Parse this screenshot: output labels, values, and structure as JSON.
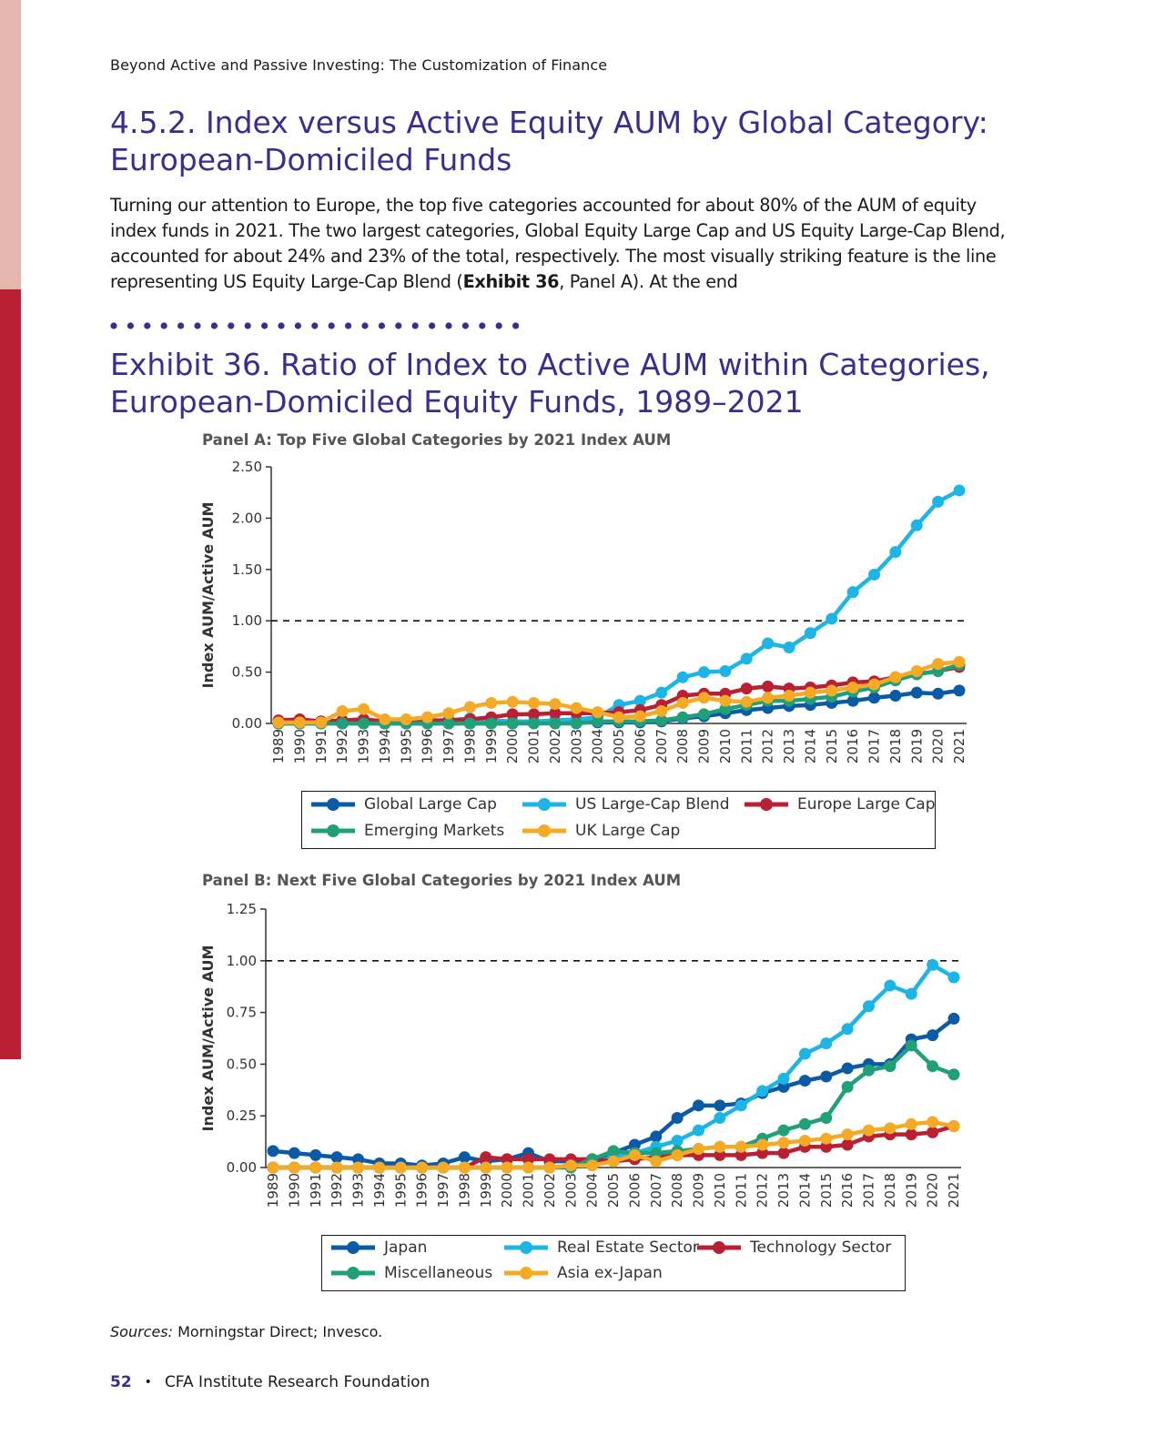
{
  "running_head": "Beyond Active and Passive Investing: The Customization of Finance",
  "section": {
    "title_line1": "4.5.2. Index versus Active Equity AUM by Global Category:",
    "title_line2": "European-Domiciled Funds"
  },
  "body": {
    "part1": "Turning our attention to Europe, the top five categories accounted for about 80% of the AUM of equity index funds in 2021. The two largest categories, Global Equity Large Cap and US Equity Large-Cap Blend, accounted for about 24% and 23% of the total, respectively. The most visually striking feature is the line representing US Equity Large-Cap Blend (",
    "bold": "Exhibit 36",
    "part2": ", Panel A). At the end"
  },
  "exhibit": {
    "title_line1": "Exhibit 36. Ratio of Index to Active AUM within Categories,",
    "title_line2": "European-Domiciled Equity Funds, 1989–2021"
  },
  "colors": {
    "title_purple": "#3e2b8c",
    "dots_purple": "#3e2b8c",
    "sidebar_pink": "#e5b6ad",
    "sidebar_red": "#b92033"
  },
  "chart_data": [
    {
      "type": "line",
      "title": "Panel A: Top Five Global Categories by 2021 Index AUM",
      "ylabel": "Index AUM/Active AUM",
      "xlabel": "",
      "ylim": [
        0,
        2.5
      ],
      "yticks": [
        "0.00",
        "0.50",
        "1.00",
        "1.50",
        "2.00",
        "2.50"
      ],
      "reference_line": 1.0,
      "grid": false,
      "legend": "bottom",
      "x": [
        "1989",
        "1990",
        "1991",
        "1992",
        "1993",
        "1994",
        "1995",
        "1996",
        "1997",
        "1998",
        "1999",
        "2000",
        "2001",
        "2002",
        "2003",
        "2004",
        "2005",
        "2006",
        "2007",
        "2008",
        "2009",
        "2010",
        "2011",
        "2012",
        "2013",
        "2014",
        "2015",
        "2016",
        "2017",
        "2018",
        "2019",
        "2020",
        "2021"
      ],
      "series": [
        {
          "name": "Global Large Cap",
          "color": "#0b5aa6",
          "values": [
            0,
            0,
            0,
            0,
            0,
            0,
            0,
            0,
            0,
            0,
            0,
            0,
            0.01,
            0.01,
            0.01,
            0.01,
            0.01,
            0.01,
            0.02,
            0.05,
            0.07,
            0.1,
            0.13,
            0.15,
            0.17,
            0.18,
            0.2,
            0.22,
            0.25,
            0.27,
            0.3,
            0.29,
            0.32
          ]
        },
        {
          "name": "US Large-Cap Blend",
          "color": "#1db4e6",
          "values": [
            0,
            0,
            0,
            0.02,
            0.02,
            0,
            0,
            0.02,
            0.03,
            0.05,
            0.03,
            0.02,
            0.02,
            0.03,
            0.04,
            0.06,
            0.18,
            0.22,
            0.3,
            0.45,
            0.5,
            0.51,
            0.63,
            0.78,
            0.74,
            0.88,
            1.02,
            1.28,
            1.45,
            1.67,
            1.93,
            2.16,
            2.27
          ]
        },
        {
          "name": "Europe Large Cap",
          "color": "#b92033",
          "values": [
            0.03,
            0.04,
            0.02,
            0.03,
            0.04,
            0.02,
            0.01,
            0.03,
            0.03,
            0.04,
            0.06,
            0.09,
            0.09,
            0.1,
            0.1,
            0.1,
            0.11,
            0.13,
            0.18,
            0.27,
            0.29,
            0.29,
            0.34,
            0.36,
            0.34,
            0.35,
            0.37,
            0.4,
            0.41,
            0.45,
            0.48,
            0.51,
            0.55
          ]
        },
        {
          "name": "Emerging Markets",
          "color": "#1fa078",
          "values": [
            0,
            0,
            0,
            0,
            0,
            0,
            0,
            0,
            0,
            0,
            0,
            0,
            0,
            0,
            0,
            0.02,
            0.02,
            0.02,
            0.03,
            0.06,
            0.09,
            0.14,
            0.18,
            0.22,
            0.22,
            0.24,
            0.26,
            0.31,
            0.35,
            0.42,
            0.48,
            0.51,
            0.57
          ]
        },
        {
          "name": "UK Large Cap",
          "color": "#f4aa25",
          "values": [
            0.01,
            0.01,
            0.01,
            0.12,
            0.14,
            0.04,
            0.04,
            0.06,
            0.1,
            0.16,
            0.2,
            0.21,
            0.2,
            0.19,
            0.15,
            0.11,
            0.06,
            0.07,
            0.12,
            0.2,
            0.25,
            0.22,
            0.21,
            0.25,
            0.27,
            0.3,
            0.32,
            0.35,
            0.38,
            0.45,
            0.51,
            0.58,
            0.6
          ]
        }
      ]
    },
    {
      "type": "line",
      "title": "Panel B: Next Five Global Categories by 2021 Index AUM",
      "ylabel": "Index AUM/Active AUM",
      "xlabel": "",
      "ylim": [
        0,
        1.25
      ],
      "yticks": [
        "0.00",
        "0.25",
        "0.50",
        "0.75",
        "1.00",
        "1.25"
      ],
      "reference_line": 1.0,
      "grid": false,
      "legend": "bottom",
      "x": [
        "1989",
        "1990",
        "1991",
        "1992",
        "1993",
        "1994",
        "1995",
        "1996",
        "1997",
        "1998",
        "1999",
        "2000",
        "2001",
        "2002",
        "2003",
        "2004",
        "2005",
        "2006",
        "2007",
        "2008",
        "2009",
        "2010",
        "2011",
        "2012",
        "2013",
        "2014",
        "2015",
        "2016",
        "2017",
        "2018",
        "2019",
        "2020",
        "2021"
      ],
      "series": [
        {
          "name": "Japan",
          "color": "#0b5aa6",
          "values": [
            0.08,
            0.07,
            0.06,
            0.05,
            0.04,
            0.02,
            0.02,
            0.01,
            0.02,
            0.05,
            0.03,
            0.04,
            0.07,
            0.03,
            0.03,
            0.04,
            0.07,
            0.11,
            0.15,
            0.24,
            0.3,
            0.3,
            0.31,
            0.36,
            0.39,
            0.42,
            0.44,
            0.48,
            0.5,
            0.5,
            0.62,
            0.64,
            0.72
          ]
        },
        {
          "name": "Real Estate Sector",
          "color": "#1db4e6",
          "values": [
            0,
            0,
            0,
            0,
            0,
            0,
            0,
            0,
            0,
            0,
            0,
            0,
            0,
            0,
            0.01,
            0.02,
            0.05,
            0.07,
            0.1,
            0.13,
            0.18,
            0.24,
            0.3,
            0.37,
            0.43,
            0.55,
            0.6,
            0.67,
            0.78,
            0.88,
            0.84,
            0.98,
            0.92
          ]
        },
        {
          "name": "Technology Sector",
          "color": "#b92033",
          "values": [
            0,
            0,
            0,
            0,
            0,
            0,
            0,
            0,
            0,
            0,
            0.05,
            0.04,
            0.04,
            0.04,
            0.04,
            0.04,
            0.03,
            0.04,
            0.05,
            0.06,
            0.06,
            0.06,
            0.06,
            0.07,
            0.07,
            0.1,
            0.1,
            0.11,
            0.15,
            0.16,
            0.16,
            0.17,
            0.2
          ]
        },
        {
          "name": "Miscellaneous",
          "color": "#1fa078",
          "values": [
            0,
            0,
            0,
            0,
            0,
            0,
            0,
            0,
            0,
            0,
            0,
            0,
            0,
            0,
            0,
            0.04,
            0.08,
            0.07,
            0.07,
            0.08,
            0.09,
            0.1,
            0.1,
            0.14,
            0.18,
            0.21,
            0.24,
            0.39,
            0.47,
            0.49,
            0.59,
            0.49,
            0.45
          ]
        },
        {
          "name": "Asia ex-Japan",
          "color": "#f4aa25",
          "values": [
            0,
            0,
            0,
            0,
            0,
            0,
            0,
            0,
            0,
            0,
            0,
            0,
            0,
            0,
            0.01,
            0.01,
            0.03,
            0.06,
            0.03,
            0.06,
            0.09,
            0.1,
            0.1,
            0.11,
            0.12,
            0.13,
            0.14,
            0.16,
            0.18,
            0.19,
            0.21,
            0.22,
            0.2
          ]
        }
      ]
    }
  ],
  "sources": {
    "label": "Sources:",
    "text": " Morningstar Direct; Invesco."
  },
  "footer": {
    "page_number": "52",
    "bullet": "•",
    "org": "CFA Institute Research Foundation"
  }
}
